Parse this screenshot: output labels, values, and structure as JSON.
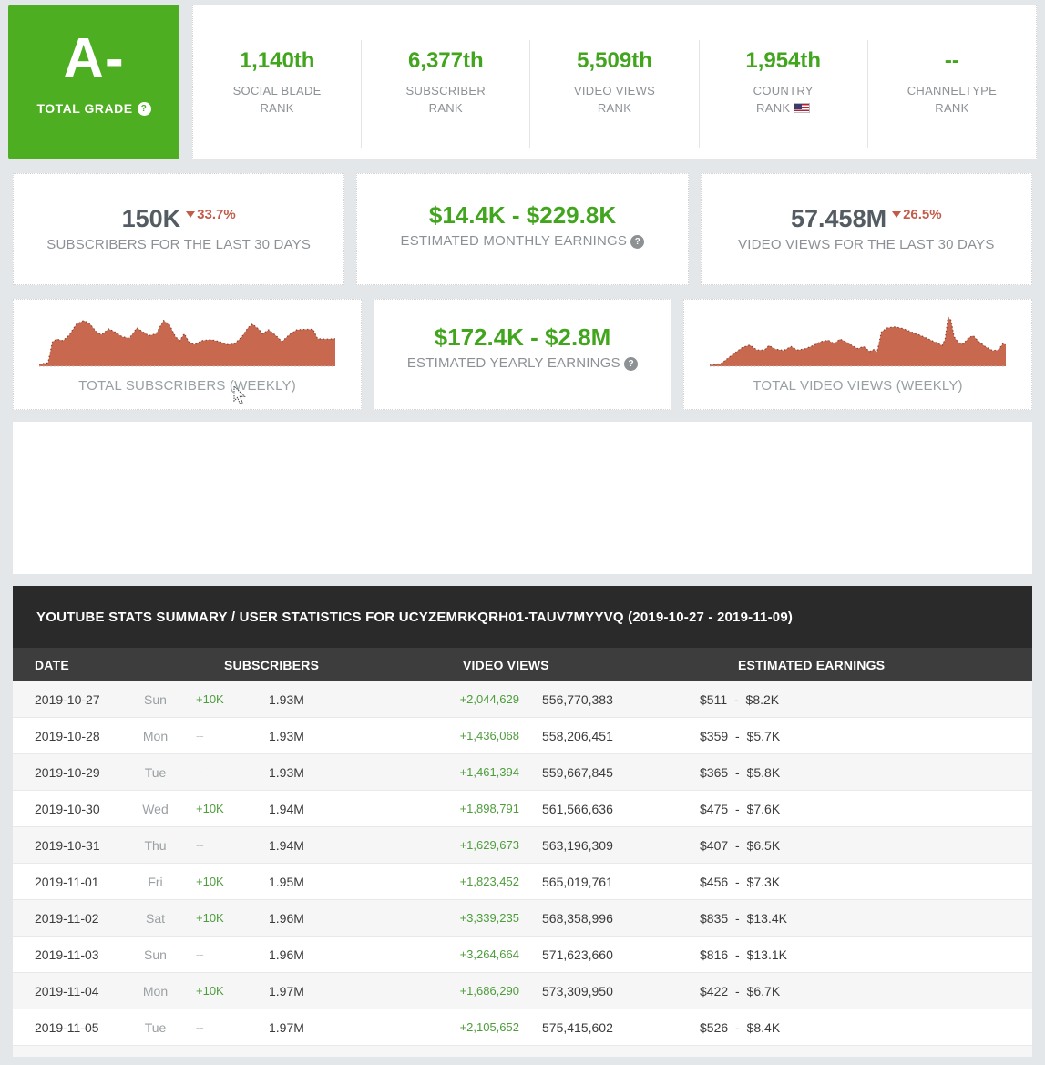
{
  "colors": {
    "grade_green": "#4cae20",
    "stat_green": "#42a51e",
    "table_green": "#4e9d3c",
    "decline_red": "#c25b4a",
    "chart_fill": "#c7684f",
    "header_dark": "#2b2a2a",
    "header_mid": "#3e3d3d"
  },
  "grade_card": {
    "grade": "A-",
    "label": "TOTAL GRADE"
  },
  "ranks": [
    {
      "value": "1,140th",
      "label_line1": "SOCIAL BLADE",
      "label_line2": "RANK"
    },
    {
      "value": "6,377th",
      "label_line1": "SUBSCRIBER",
      "label_line2": "RANK"
    },
    {
      "value": "5,509th",
      "label_line1": "VIDEO VIEWS",
      "label_line2": "RANK"
    },
    {
      "value": "1,954th",
      "label_line1": "COUNTRY",
      "label_line2": "RANK",
      "flag": "us-flag"
    },
    {
      "value": "--",
      "label_line1": "CHANNELTYPE",
      "label_line2": "RANK"
    }
  ],
  "stats": {
    "subscribers": {
      "value": "150K",
      "change": "33.7%",
      "direction": "down",
      "label": "SUBSCRIBERS FOR THE LAST 30 DAYS"
    },
    "monthly_earnings": {
      "value": "$14.4K - $229.8K",
      "label": "ESTIMATED MONTHLY EARNINGS"
    },
    "video_views": {
      "value": "57.458M",
      "change": "26.5%",
      "direction": "down",
      "label": "VIDEO VIEWS FOR THE LAST 30 DAYS"
    },
    "subscribers_chart": {
      "label": "TOTAL SUBSCRIBERS (WEEKLY)"
    },
    "yearly_earnings": {
      "value": "$172.4K - $2.8M",
      "label": "ESTIMATED YEARLY EARNINGS"
    },
    "video_views_chart": {
      "label": "TOTAL VIDEO VIEWS (WEEKLY)"
    }
  },
  "chart_data": [
    {
      "type": "area",
      "title": "TOTAL SUBSCRIBERS (WEEKLY)",
      "x_range": [
        0,
        1
      ],
      "y_range": [
        0,
        1
      ],
      "axes_shown": false,
      "points": [
        [
          0.0,
          0.04
        ],
        [
          0.03,
          0.07
        ],
        [
          0.045,
          0.5
        ],
        [
          0.06,
          0.55
        ],
        [
          0.08,
          0.52
        ],
        [
          0.1,
          0.62
        ],
        [
          0.125,
          0.85
        ],
        [
          0.15,
          0.93
        ],
        [
          0.17,
          0.87
        ],
        [
          0.19,
          0.72
        ],
        [
          0.21,
          0.64
        ],
        [
          0.235,
          0.76
        ],
        [
          0.255,
          0.7
        ],
        [
          0.28,
          0.6
        ],
        [
          0.305,
          0.57
        ],
        [
          0.33,
          0.78
        ],
        [
          0.35,
          0.7
        ],
        [
          0.37,
          0.62
        ],
        [
          0.395,
          0.66
        ],
        [
          0.42,
          0.93
        ],
        [
          0.44,
          0.84
        ],
        [
          0.46,
          0.6
        ],
        [
          0.475,
          0.52
        ],
        [
          0.49,
          0.66
        ],
        [
          0.505,
          0.5
        ],
        [
          0.525,
          0.44
        ],
        [
          0.55,
          0.52
        ],
        [
          0.58,
          0.54
        ],
        [
          0.61,
          0.5
        ],
        [
          0.635,
          0.44
        ],
        [
          0.66,
          0.46
        ],
        [
          0.685,
          0.6
        ],
        [
          0.705,
          0.78
        ],
        [
          0.72,
          0.86
        ],
        [
          0.74,
          0.76
        ],
        [
          0.755,
          0.66
        ],
        [
          0.775,
          0.74
        ],
        [
          0.8,
          0.62
        ],
        [
          0.82,
          0.5
        ],
        [
          0.845,
          0.64
        ],
        [
          0.87,
          0.74
        ],
        [
          0.9,
          0.75
        ],
        [
          0.925,
          0.75
        ],
        [
          0.94,
          0.56
        ],
        [
          0.97,
          0.55
        ],
        [
          1.0,
          0.56
        ]
      ]
    },
    {
      "type": "area",
      "title": "TOTAL VIDEO VIEWS (WEEKLY)",
      "x_range": [
        0,
        1
      ],
      "y_range": [
        0,
        1
      ],
      "axes_shown": false,
      "points": [
        [
          0.0,
          0.02
        ],
        [
          0.04,
          0.06
        ],
        [
          0.08,
          0.25
        ],
        [
          0.11,
          0.38
        ],
        [
          0.135,
          0.43
        ],
        [
          0.16,
          0.33
        ],
        [
          0.185,
          0.33
        ],
        [
          0.2,
          0.42
        ],
        [
          0.22,
          0.35
        ],
        [
          0.25,
          0.32
        ],
        [
          0.275,
          0.4
        ],
        [
          0.295,
          0.33
        ],
        [
          0.32,
          0.35
        ],
        [
          0.35,
          0.42
        ],
        [
          0.375,
          0.5
        ],
        [
          0.4,
          0.53
        ],
        [
          0.42,
          0.46
        ],
        [
          0.44,
          0.55
        ],
        [
          0.46,
          0.5
        ],
        [
          0.48,
          0.42
        ],
        [
          0.5,
          0.36
        ],
        [
          0.52,
          0.4
        ],
        [
          0.54,
          0.3
        ],
        [
          0.555,
          0.34
        ],
        [
          0.565,
          0.28
        ],
        [
          0.58,
          0.7
        ],
        [
          0.6,
          0.78
        ],
        [
          0.625,
          0.8
        ],
        [
          0.65,
          0.77
        ],
        [
          0.68,
          0.7
        ],
        [
          0.71,
          0.63
        ],
        [
          0.74,
          0.55
        ],
        [
          0.765,
          0.48
        ],
        [
          0.785,
          0.42
        ],
        [
          0.795,
          0.55
        ],
        [
          0.805,
          1.0
        ],
        [
          0.815,
          0.93
        ],
        [
          0.825,
          0.6
        ],
        [
          0.84,
          0.48
        ],
        [
          0.855,
          0.45
        ],
        [
          0.875,
          0.58
        ],
        [
          0.89,
          0.62
        ],
        [
          0.905,
          0.52
        ],
        [
          0.93,
          0.4
        ],
        [
          0.955,
          0.32
        ],
        [
          0.975,
          0.33
        ],
        [
          0.99,
          0.46
        ],
        [
          1.0,
          0.44
        ]
      ]
    }
  ],
  "table": {
    "title": "YOUTUBE STATS SUMMARY / USER STATISTICS FOR UCYZEMRKQRH01-TAUV7MYYVQ (2019-10-27 - 2019-11-09)",
    "columns": [
      "DATE",
      "SUBSCRIBERS",
      "VIDEO VIEWS",
      "ESTIMATED EARNINGS"
    ],
    "rows": [
      {
        "date": "2019-10-27",
        "day": "Sun",
        "sub_change": "+10K",
        "subs_total": "1.93M",
        "views_change": "+2,044,629",
        "views_total": "556,770,383",
        "earnings": "$511 - $8.2K"
      },
      {
        "date": "2019-10-28",
        "day": "Mon",
        "sub_change": "--",
        "subs_total": "1.93M",
        "views_change": "+1,436,068",
        "views_total": "558,206,451",
        "earnings": "$359 - $5.7K"
      },
      {
        "date": "2019-10-29",
        "day": "Tue",
        "sub_change": "--",
        "subs_total": "1.93M",
        "views_change": "+1,461,394",
        "views_total": "559,667,845",
        "earnings": "$365 - $5.8K"
      },
      {
        "date": "2019-10-30",
        "day": "Wed",
        "sub_change": "+10K",
        "subs_total": "1.94M",
        "views_change": "+1,898,791",
        "views_total": "561,566,636",
        "earnings": "$475 - $7.6K"
      },
      {
        "date": "2019-10-31",
        "day": "Thu",
        "sub_change": "--",
        "subs_total": "1.94M",
        "views_change": "+1,629,673",
        "views_total": "563,196,309",
        "earnings": "$407 - $6.5K"
      },
      {
        "date": "2019-11-01",
        "day": "Fri",
        "sub_change": "+10K",
        "subs_total": "1.95M",
        "views_change": "+1,823,452",
        "views_total": "565,019,761",
        "earnings": "$456 - $7.3K"
      },
      {
        "date": "2019-11-02",
        "day": "Sat",
        "sub_change": "+10K",
        "subs_total": "1.96M",
        "views_change": "+3,339,235",
        "views_total": "568,358,996",
        "earnings": "$835 - $13.4K"
      },
      {
        "date": "2019-11-03",
        "day": "Sun",
        "sub_change": "--",
        "subs_total": "1.96M",
        "views_change": "+3,264,664",
        "views_total": "571,623,660",
        "earnings": "$816 - $13.1K"
      },
      {
        "date": "2019-11-04",
        "day": "Mon",
        "sub_change": "+10K",
        "subs_total": "1.97M",
        "views_change": "+1,686,290",
        "views_total": "573,309,950",
        "earnings": "$422 - $6.7K"
      },
      {
        "date": "2019-11-05",
        "day": "Tue",
        "sub_change": "--",
        "subs_total": "1.97M",
        "views_change": "+2,105,652",
        "views_total": "575,415,602",
        "earnings": "$526 - $8.4K"
      }
    ]
  },
  "misc": {
    "help_glyph": "?"
  }
}
